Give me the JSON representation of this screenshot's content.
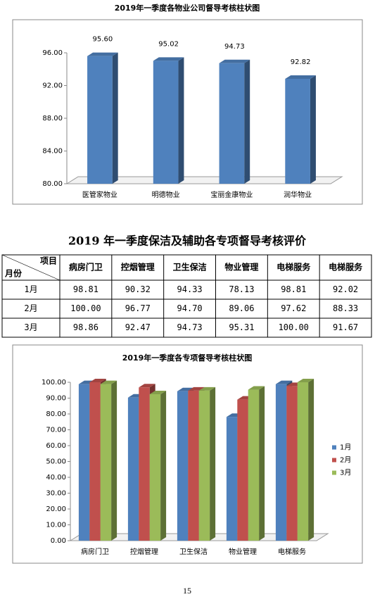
{
  "chart_data": [
    {
      "type": "bar",
      "title": "2019年一季度各物业公司督导考核柱状图",
      "categories": [
        "医管家物业",
        "明德物业",
        "宝丽金康物业",
        "润华物业"
      ],
      "values": [
        95.6,
        95.02,
        94.73,
        92.82
      ],
      "value_labels": [
        "95.60",
        "95.02",
        "94.73",
        "92.82"
      ],
      "color": "#4f81bd",
      "ylim": [
        80,
        96
      ],
      "yticks": [
        {
          "value": 80,
          "label": "80.00"
        },
        {
          "value": 84,
          "label": "84.00"
        },
        {
          "value": 88,
          "label": "88.00"
        },
        {
          "value": 92,
          "label": "92.00"
        },
        {
          "value": 96,
          "label": "96.00"
        }
      ],
      "grid": false
    },
    {
      "type": "bar",
      "title": "2019年一季度各专项督导考核柱状图",
      "categories": [
        "病房门卫",
        "控烟管理",
        "卫生保洁",
        "物业管理",
        "电梯服务"
      ],
      "series": [
        {
          "name": "1月",
          "color": "#4f81bd",
          "values": [
            98.81,
            90.32,
            94.33,
            78.13,
            98.81
          ]
        },
        {
          "name": "2月",
          "color": "#c0504d",
          "values": [
            100,
            96.77,
            94.7,
            89.06,
            97.62
          ]
        },
        {
          "name": "3月",
          "color": "#9bbb59",
          "values": [
            98.86,
            92.47,
            94.73,
            95.31,
            100
          ]
        }
      ],
      "ylim": [
        0,
        100
      ],
      "yticks": [
        {
          "value": 0,
          "label": "0.00"
        },
        {
          "value": 10,
          "label": "10.00"
        },
        {
          "value": 20,
          "label": "20.00"
        },
        {
          "value": 30,
          "label": "30.00"
        },
        {
          "value": 40,
          "label": "40.00"
        },
        {
          "value": 50,
          "label": "50.00"
        },
        {
          "value": 60,
          "label": "60.00"
        },
        {
          "value": 70,
          "label": "70.00"
        },
        {
          "value": 80,
          "label": "80.00"
        },
        {
          "value": 90,
          "label": "90.00"
        },
        {
          "value": 100,
          "label": "100.00"
        }
      ],
      "grid": false,
      "legend": "right"
    }
  ],
  "table": {
    "title": "2019 年一季度保洁及辅助各专项督导考核评价",
    "corner_top": "项目",
    "corner_bottom": "月份",
    "columns": [
      "病房门卫",
      "控烟管理",
      "卫生保洁",
      "物业管理",
      "电梯服务",
      "电梯服务"
    ],
    "rows": [
      {
        "label": "1月",
        "values": [
          "98.81",
          "90.32",
          "94.33",
          "78.13",
          "98.81",
          "92.02"
        ]
      },
      {
        "label": "2月",
        "values": [
          "100.00",
          "96.77",
          "94.70",
          "89.06",
          "97.62",
          "88.33"
        ]
      },
      {
        "label": "3月",
        "values": [
          "98.86",
          "92.47",
          "94.73",
          "95.31",
          "100.00",
          "91.67"
        ]
      }
    ]
  },
  "page_number": "15"
}
